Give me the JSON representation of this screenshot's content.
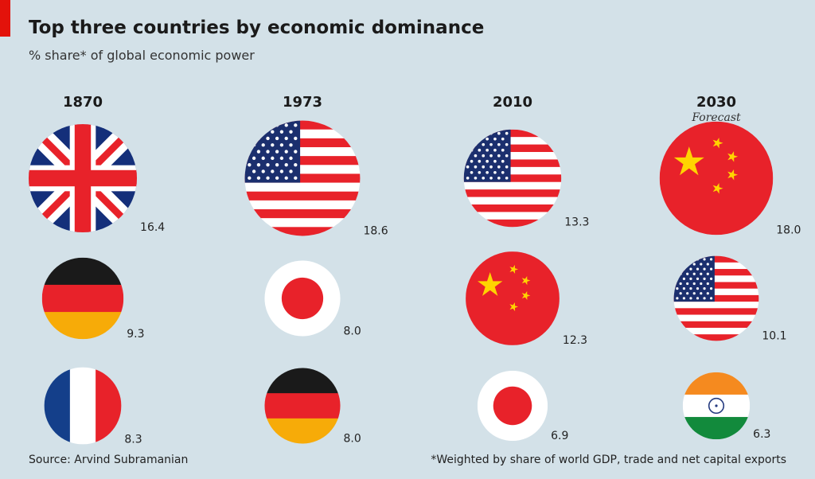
{
  "header": {
    "title": "Top three countries by economic dominance",
    "subtitle": "% share* of global economic power"
  },
  "footer": {
    "source": "Source: Arvind Subramanian",
    "footnote": "*Weighted by share of world GDP, trade and net capital exports"
  },
  "chart_data": {
    "type": "bubble",
    "title": "Top three countries by economic dominance",
    "subtitle": "% share* of global economic power",
    "columns": [
      {
        "year": "1870",
        "note": "",
        "items": [
          {
            "country": "Britain",
            "flag": "uk",
            "value": 16.4
          },
          {
            "country": "Germany",
            "flag": "germany",
            "value": 9.3
          },
          {
            "country": "France",
            "flag": "france",
            "value": 8.3
          }
        ]
      },
      {
        "year": "1973",
        "note": "",
        "items": [
          {
            "country": "United States",
            "flag": "usa",
            "value": 18.6
          },
          {
            "country": "Japan",
            "flag": "japan",
            "value": 8.0
          },
          {
            "country": "Germany",
            "flag": "germany",
            "value": 8.0
          }
        ]
      },
      {
        "year": "2010",
        "note": "",
        "items": [
          {
            "country": "United States",
            "flag": "usa",
            "value": 13.3
          },
          {
            "country": "China",
            "flag": "china",
            "value": 12.3
          },
          {
            "country": "Japan",
            "flag": "japan",
            "value": 6.9
          }
        ]
      },
      {
        "year": "2030",
        "note": "Forecast",
        "items": [
          {
            "country": "China",
            "flag": "china",
            "value": 18.0
          },
          {
            "country": "United States",
            "flag": "usa",
            "value": 10.1
          },
          {
            "country": "India",
            "flag": "india",
            "value": 6.3
          }
        ]
      }
    ]
  },
  "colors": {
    "background": "#d3e1e8",
    "accent": "#e3120b",
    "flag_red": "#e8222a",
    "flag_blue": "#143f8a",
    "flag_white": "#ffffff",
    "flag_black": "#1a1a1a",
    "flag_gold": "#f7ab08",
    "star_yellow": "#ffd400",
    "india_saffron": "#f58a1f",
    "india_green": "#128a3c",
    "chakra_blue": "#253b80"
  }
}
